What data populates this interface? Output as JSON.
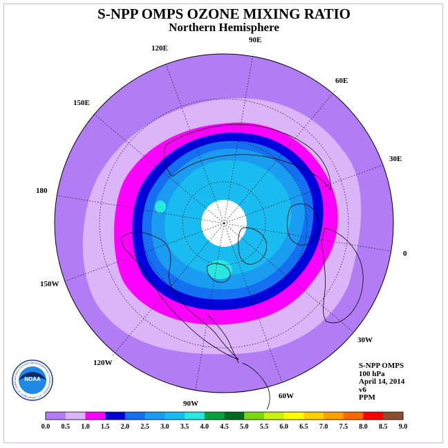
{
  "title": "S-NPP OMPS OZONE MIXING RATIO",
  "subtitle": "Northern Hemisphere",
  "longitude_labels": [
    "90E",
    "60E",
    "30E",
    "0",
    "30W",
    "60W",
    "90W",
    "120W",
    "150W",
    "180",
    "150E",
    "120E"
  ],
  "info": {
    "instrument": "S-NPP OMPS",
    "level": "100 hPa",
    "date": "April 14, 2014",
    "version": "v6",
    "units": "PPM"
  },
  "logo": {
    "name": "NOAA",
    "ring_text": "NATIONAL OCEANIC AND ATMOSPHERIC ADMINISTRATION · U.S. DEPARTMENT OF COMMERCE"
  },
  "colorbar": {
    "ticks": [
      "0.0",
      "0.5",
      "1.0",
      "1.5",
      "2.0",
      "2.5",
      "3.0",
      "3.5",
      "4.0",
      "4.5",
      "5.0",
      "5.5",
      "6.0",
      "6.5",
      "7.0",
      "7.5",
      "8.0",
      "8.5",
      "9.0"
    ],
    "colors": [
      "#b27cf4",
      "#dcb4f8",
      "#ff00ff",
      "#0000dd",
      "#1470f0",
      "#1a9cf0",
      "#18bcf0",
      "#28e6e0",
      "#0aa040",
      "#006a20",
      "#7cd810",
      "#c8f010",
      "#ffff00",
      "#ffd000",
      "#ffa000",
      "#ff6800",
      "#ff0000",
      "#8c5030"
    ]
  },
  "ozone_bands": [
    {
      "range": "0.0–0.5",
      "color": "#b27cf4"
    },
    {
      "range": "0.5–1.0",
      "color": "#dcb4f8"
    },
    {
      "range": "1.0–1.5",
      "color": "#ff00ff"
    },
    {
      "range": "1.5–2.0",
      "color": "#0000dd"
    },
    {
      "range": "2.0–2.5",
      "color": "#1470f0"
    },
    {
      "range": "2.5–3.0",
      "color": "#1a9cf0"
    },
    {
      "range": "3.0–3.5",
      "color": "#18bcf0"
    },
    {
      "range": "3.5–4.0",
      "color": "#28e6e0"
    }
  ]
}
